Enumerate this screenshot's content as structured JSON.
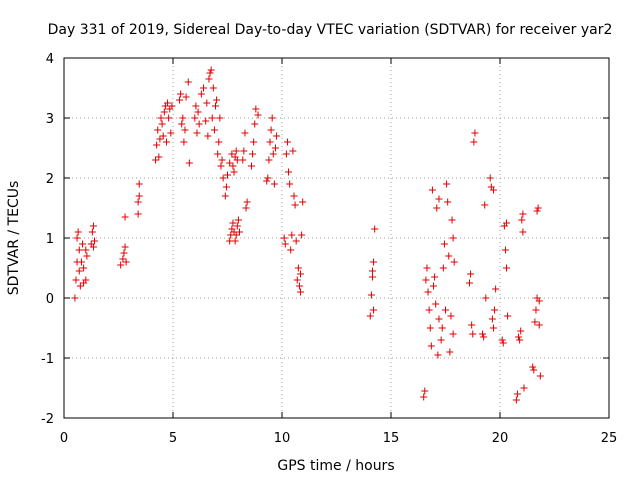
{
  "chart_data": {
    "type": "scatter",
    "title": "Day 331 of 2019, Sidereal Day-to-day VTEC variation (SDTVAR) for receiver yar2",
    "xlabel": "GPS time / hours",
    "ylabel": "SDTVAR / TECUs",
    "xlim": [
      0,
      25
    ],
    "ylim": [
      -2,
      4
    ],
    "xticks": [
      0,
      5,
      10,
      15,
      20,
      25
    ],
    "yticks": [
      -2,
      -1,
      0,
      1,
      2,
      3,
      4
    ],
    "xtick_labels": [
      "0",
      "5",
      "10",
      "15",
      "20",
      "25"
    ],
    "ytick_labels": [
      "-2",
      "-1",
      "0",
      "1",
      "2",
      "3",
      "4"
    ],
    "grid": true,
    "marker": "+",
    "marker_color": "#e00000",
    "series": [
      {
        "name": "SDTVAR",
        "points": [
          [
            0.5,
            0.0
          ],
          [
            0.55,
            0.3
          ],
          [
            0.6,
            0.6
          ],
          [
            0.6,
            1.0
          ],
          [
            0.65,
            1.1
          ],
          [
            0.7,
            0.8
          ],
          [
            0.7,
            0.45
          ],
          [
            0.75,
            0.2
          ],
          [
            0.8,
            0.6
          ],
          [
            0.85,
            0.9
          ],
          [
            0.9,
            0.5
          ],
          [
            0.9,
            0.25
          ],
          [
            1.0,
            0.8
          ],
          [
            1.0,
            0.3
          ],
          [
            1.05,
            0.7
          ],
          [
            1.25,
            0.9
          ],
          [
            1.3,
            1.1
          ],
          [
            1.35,
            1.2
          ],
          [
            1.4,
            0.95
          ],
          [
            1.35,
            0.85
          ],
          [
            2.6,
            0.55
          ],
          [
            2.7,
            0.65
          ],
          [
            2.75,
            0.75
          ],
          [
            2.8,
            0.85
          ],
          [
            2.85,
            0.6
          ],
          [
            2.8,
            1.35
          ],
          [
            3.4,
            1.4
          ],
          [
            3.4,
            1.6
          ],
          [
            3.45,
            1.7
          ],
          [
            3.45,
            1.9
          ],
          [
            4.2,
            2.3
          ],
          [
            4.25,
            2.55
          ],
          [
            4.3,
            2.8
          ],
          [
            4.35,
            2.35
          ],
          [
            4.4,
            2.65
          ],
          [
            4.45,
            3.0
          ],
          [
            4.5,
            2.9
          ],
          [
            4.55,
            2.7
          ],
          [
            4.6,
            3.1
          ],
          [
            4.65,
            3.2
          ],
          [
            4.7,
            2.6
          ],
          [
            4.75,
            3.25
          ],
          [
            4.8,
            3.0
          ],
          [
            4.85,
            3.15
          ],
          [
            4.9,
            2.75
          ],
          [
            4.95,
            3.2
          ],
          [
            5.3,
            3.3
          ],
          [
            5.35,
            3.4
          ],
          [
            5.4,
            2.9
          ],
          [
            5.45,
            3.0
          ],
          [
            5.5,
            2.6
          ],
          [
            5.55,
            2.8
          ],
          [
            5.6,
            3.35
          ],
          [
            5.7,
            3.6
          ],
          [
            5.75,
            2.25
          ],
          [
            6.0,
            3.0
          ],
          [
            6.05,
            3.2
          ],
          [
            6.1,
            2.75
          ],
          [
            6.15,
            3.1
          ],
          [
            6.2,
            2.9
          ],
          [
            6.3,
            3.4
          ],
          [
            6.4,
            3.5
          ],
          [
            6.5,
            2.95
          ],
          [
            6.55,
            3.25
          ],
          [
            6.6,
            2.7
          ],
          [
            6.65,
            3.65
          ],
          [
            6.7,
            3.75
          ],
          [
            6.75,
            3.8
          ],
          [
            6.8,
            3.0
          ],
          [
            6.85,
            3.5
          ],
          [
            6.9,
            2.8
          ],
          [
            6.95,
            3.2
          ],
          [
            7.0,
            3.3
          ],
          [
            7.05,
            2.4
          ],
          [
            7.1,
            2.6
          ],
          [
            7.15,
            3.0
          ],
          [
            7.2,
            2.2
          ],
          [
            7.25,
            2.3
          ],
          [
            7.3,
            2.0
          ],
          [
            7.4,
            1.7
          ],
          [
            7.45,
            1.85
          ],
          [
            7.5,
            2.05
          ],
          [
            7.6,
            2.25
          ],
          [
            7.7,
            2.4
          ],
          [
            7.75,
            2.2
          ],
          [
            7.8,
            2.1
          ],
          [
            7.85,
            2.35
          ],
          [
            7.9,
            2.45
          ],
          [
            7.95,
            2.3
          ],
          [
            7.6,
            0.95
          ],
          [
            7.65,
            1.05
          ],
          [
            7.7,
            1.15
          ],
          [
            7.75,
            1.25
          ],
          [
            7.8,
            1.1
          ],
          [
            7.85,
            0.95
          ],
          [
            7.9,
            1.05
          ],
          [
            7.95,
            1.2
          ],
          [
            8.0,
            1.3
          ],
          [
            8.05,
            1.1
          ],
          [
            8.2,
            2.3
          ],
          [
            8.25,
            2.45
          ],
          [
            8.3,
            2.75
          ],
          [
            8.35,
            1.5
          ],
          [
            8.4,
            1.6
          ],
          [
            8.6,
            2.2
          ],
          [
            8.65,
            2.4
          ],
          [
            8.7,
            2.6
          ],
          [
            8.75,
            2.9
          ],
          [
            8.8,
            3.15
          ],
          [
            8.9,
            3.05
          ],
          [
            9.3,
            1.95
          ],
          [
            9.35,
            2.0
          ],
          [
            9.4,
            2.3
          ],
          [
            9.45,
            2.6
          ],
          [
            9.5,
            2.8
          ],
          [
            9.55,
            3.0
          ],
          [
            9.6,
            2.4
          ],
          [
            9.65,
            1.9
          ],
          [
            9.7,
            2.5
          ],
          [
            9.75,
            2.7
          ],
          [
            10.1,
            1.0
          ],
          [
            10.15,
            0.9
          ],
          [
            10.2,
            2.4
          ],
          [
            10.25,
            2.6
          ],
          [
            10.3,
            2.1
          ],
          [
            10.35,
            1.9
          ],
          [
            10.4,
            0.8
          ],
          [
            10.45,
            1.05
          ],
          [
            10.5,
            2.45
          ],
          [
            10.55,
            1.7
          ],
          [
            10.6,
            1.55
          ],
          [
            10.65,
            0.95
          ],
          [
            10.7,
            0.3
          ],
          [
            10.75,
            0.5
          ],
          [
            10.8,
            0.2
          ],
          [
            10.85,
            0.4
          ],
          [
            10.9,
            1.05
          ],
          [
            10.95,
            1.6
          ],
          [
            10.85,
            0.1
          ],
          [
            14.05,
            -0.3
          ],
          [
            14.1,
            0.05
          ],
          [
            14.15,
            0.35
          ],
          [
            14.2,
            0.6
          ],
          [
            14.25,
            1.15
          ],
          [
            14.2,
            -0.2
          ],
          [
            14.15,
            0.45
          ],
          [
            16.5,
            -1.65
          ],
          [
            16.55,
            -1.55
          ],
          [
            16.6,
            0.3
          ],
          [
            16.65,
            0.5
          ],
          [
            16.7,
            0.1
          ],
          [
            16.75,
            -0.2
          ],
          [
            16.8,
            -0.5
          ],
          [
            16.85,
            -0.8
          ],
          [
            16.9,
            1.8
          ],
          [
            16.95,
            0.2
          ],
          [
            17.0,
            0.35
          ],
          [
            17.05,
            -0.1
          ],
          [
            17.1,
            1.5
          ],
          [
            17.15,
            -0.95
          ],
          [
            17.2,
            1.65
          ],
          [
            17.2,
            -0.35
          ],
          [
            17.3,
            -0.7
          ],
          [
            17.35,
            -0.5
          ],
          [
            17.4,
            0.5
          ],
          [
            17.45,
            0.9
          ],
          [
            17.5,
            -0.2
          ],
          [
            17.55,
            1.9
          ],
          [
            17.6,
            1.6
          ],
          [
            17.65,
            0.7
          ],
          [
            17.7,
            -0.9
          ],
          [
            17.75,
            -0.3
          ],
          [
            17.8,
            1.3
          ],
          [
            17.85,
            1.0
          ],
          [
            17.9,
            0.6
          ],
          [
            17.85,
            -0.6
          ],
          [
            18.6,
            0.25
          ],
          [
            18.65,
            0.4
          ],
          [
            18.7,
            -0.45
          ],
          [
            18.75,
            -0.6
          ],
          [
            18.8,
            2.6
          ],
          [
            18.85,
            2.75
          ],
          [
            19.2,
            -0.6
          ],
          [
            19.25,
            -0.65
          ],
          [
            19.3,
            1.55
          ],
          [
            19.35,
            0.0
          ],
          [
            19.55,
            2.0
          ],
          [
            19.6,
            1.85
          ],
          [
            19.65,
            -0.35
          ],
          [
            19.7,
            -0.5
          ],
          [
            19.75,
            -0.2
          ],
          [
            19.8,
            0.15
          ],
          [
            19.7,
            1.8
          ],
          [
            20.1,
            -0.7
          ],
          [
            20.15,
            -0.75
          ],
          [
            20.2,
            1.2
          ],
          [
            20.25,
            0.8
          ],
          [
            20.3,
            0.5
          ],
          [
            20.35,
            -0.3
          ],
          [
            20.3,
            1.25
          ],
          [
            20.75,
            -1.7
          ],
          [
            20.8,
            -1.6
          ],
          [
            20.85,
            -0.65
          ],
          [
            20.9,
            -0.7
          ],
          [
            20.95,
            -0.55
          ],
          [
            21.0,
            1.3
          ],
          [
            21.05,
            1.4
          ],
          [
            21.1,
            -1.5
          ],
          [
            21.05,
            1.1
          ],
          [
            21.5,
            -1.15
          ],
          [
            21.55,
            -1.2
          ],
          [
            21.6,
            -0.4
          ],
          [
            21.65,
            -0.2
          ],
          [
            21.7,
            1.45
          ],
          [
            21.75,
            1.5
          ],
          [
            21.8,
            -0.05
          ],
          [
            21.85,
            -1.3
          ],
          [
            21.8,
            -0.45
          ],
          [
            21.7,
            0.0
          ]
        ]
      }
    ]
  }
}
